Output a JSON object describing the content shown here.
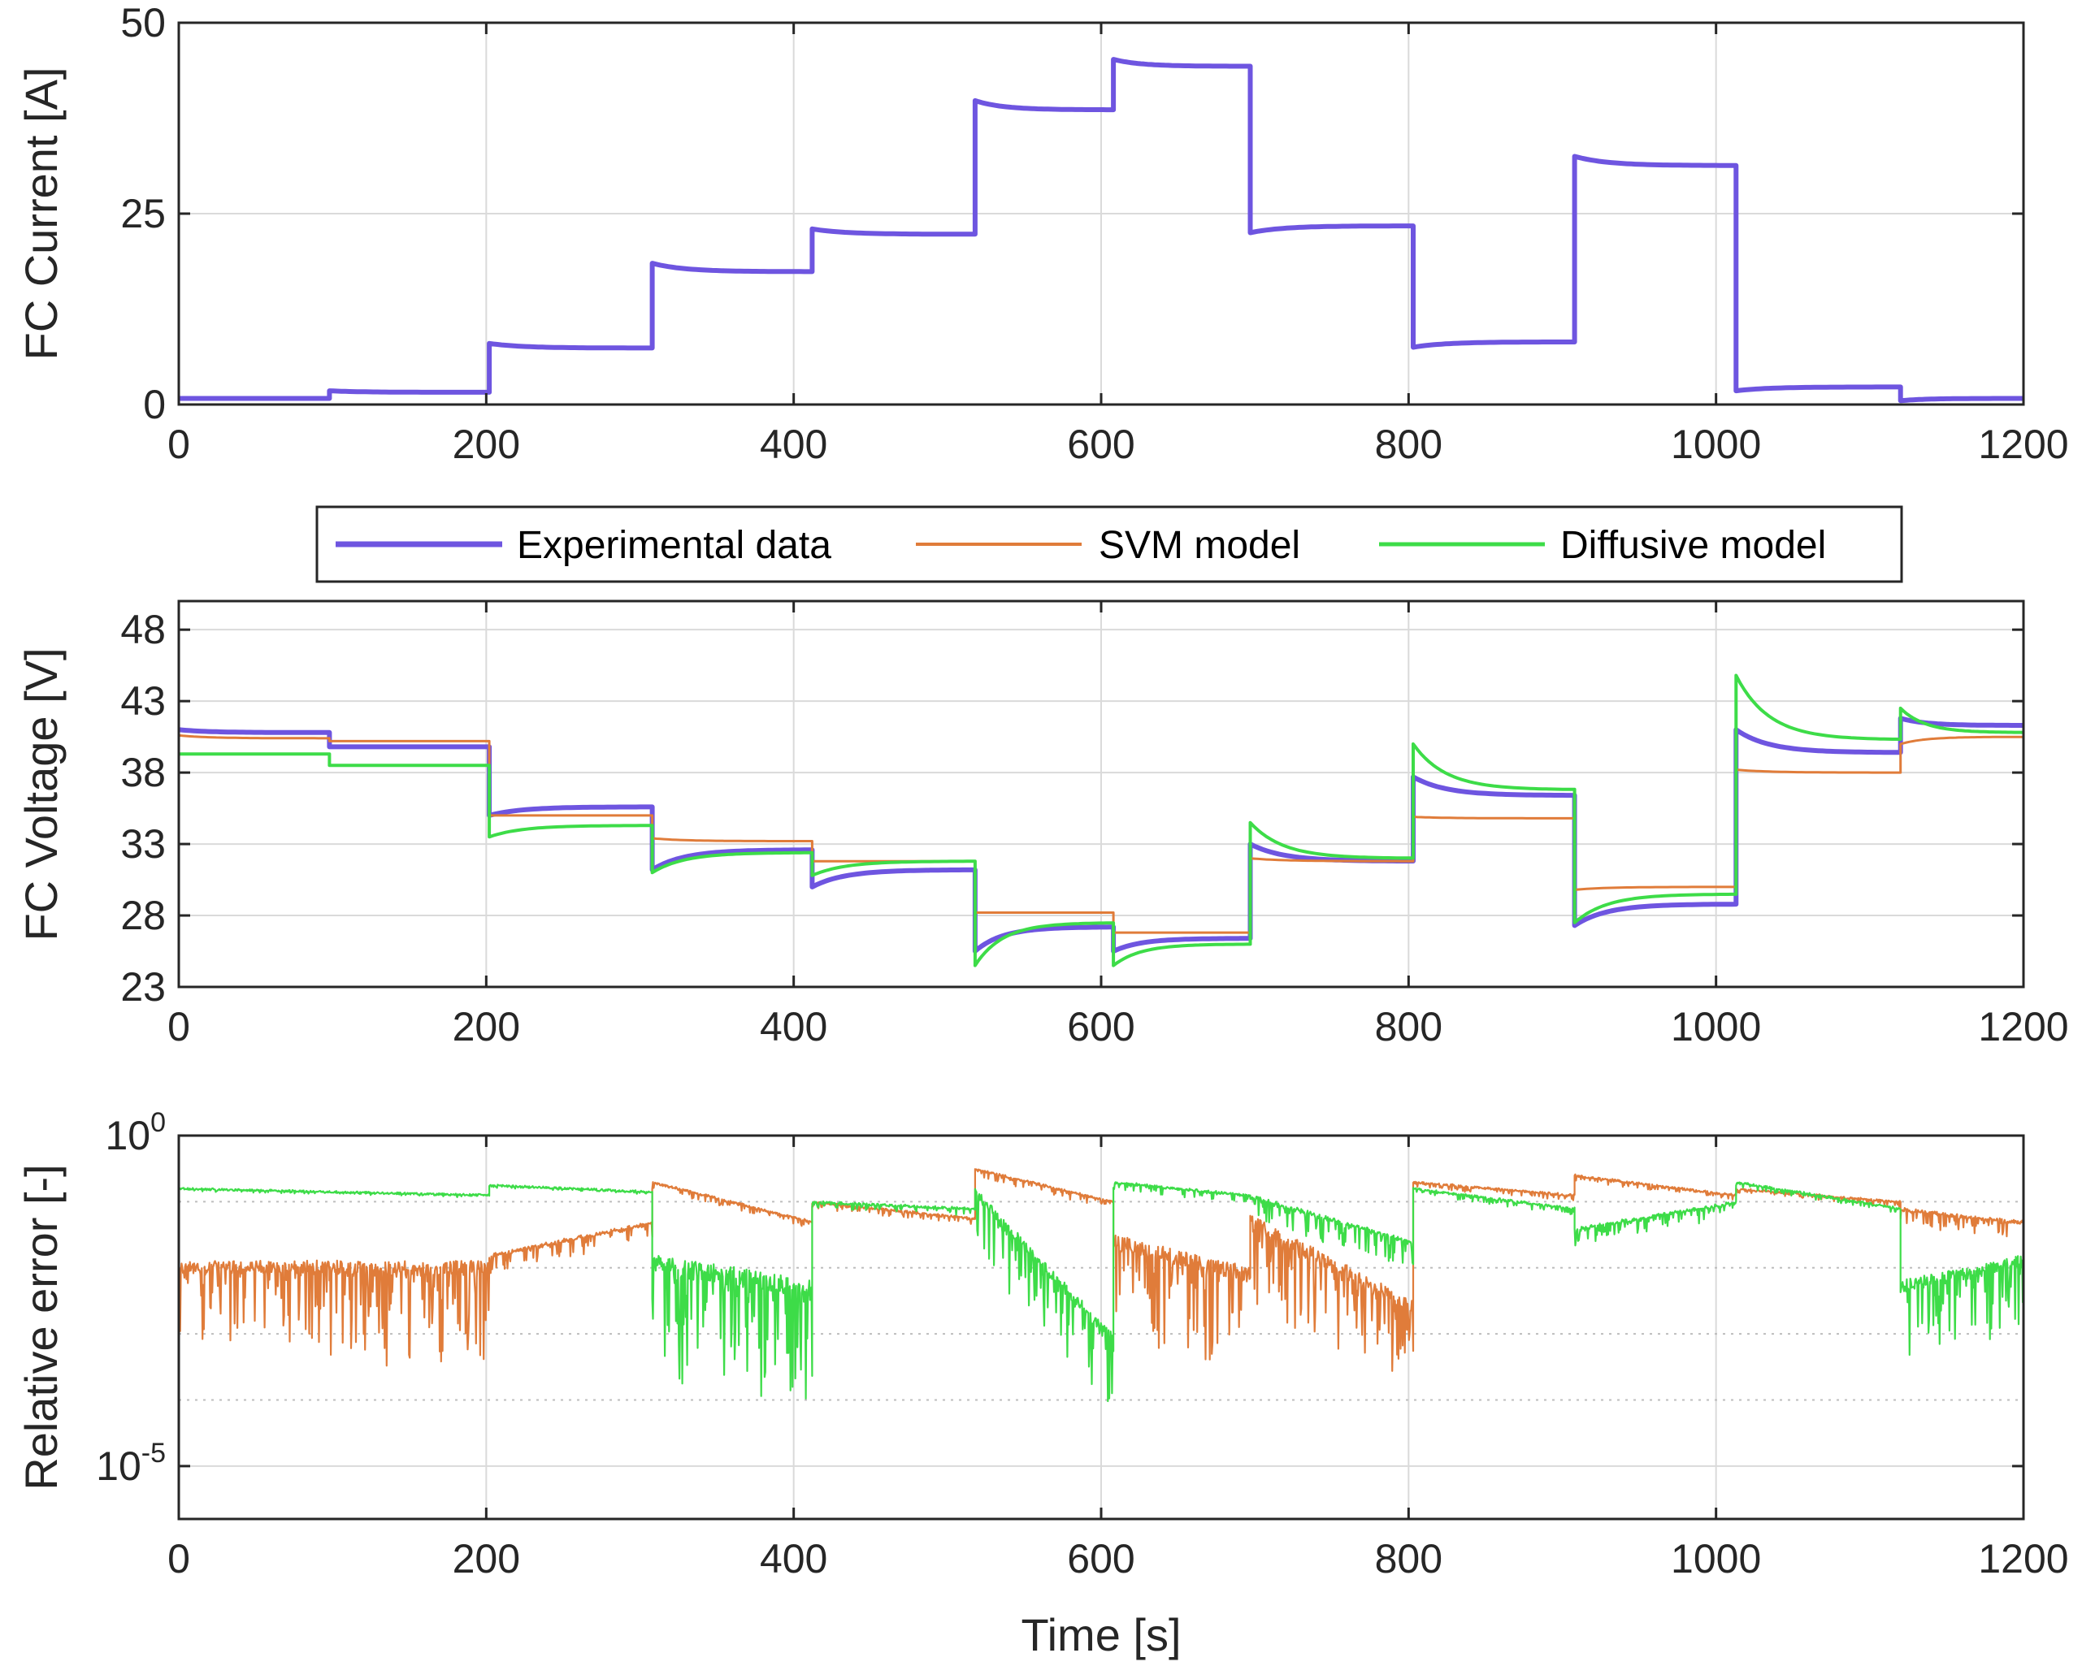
{
  "colors": {
    "experimental": "#6E55E0",
    "svm": "#E07C3A",
    "diffusive": "#3DDC48",
    "grid": "#DADADA",
    "axis": "#262626"
  },
  "legend": {
    "items": [
      {
        "key": "experimental",
        "label": "Experimental data"
      },
      {
        "key": "svm",
        "label": "SVM model"
      },
      {
        "key": "diffusive",
        "label": "Diffusive model"
      }
    ],
    "position": "between top and middle panels, centered"
  },
  "chart_data": [
    {
      "id": "current",
      "type": "line",
      "ylabel": "FC Current [A]",
      "xlabel": "",
      "xlim": [
        0,
        1200
      ],
      "ylim": [
        0,
        50
      ],
      "xticks": [
        "0",
        "200",
        "400",
        "600",
        "800",
        "1000",
        "1200"
      ],
      "yticks": [
        "0",
        "25",
        "50"
      ],
      "ytick_values": [
        0,
        25,
        50
      ],
      "grid": true,
      "series": [
        {
          "name": "Experimental data",
          "key": "experimental",
          "steps": [
            {
              "t0": 0,
              "t1": 98,
              "start": 0.8,
              "end": 0.8
            },
            {
              "t0": 98,
              "t1": 202,
              "start": 1.8,
              "end": 1.6
            },
            {
              "t0": 202,
              "t1": 308,
              "start": 8.0,
              "end": 7.4
            },
            {
              "t0": 308,
              "t1": 412,
              "start": 18.5,
              "end": 17.4
            },
            {
              "t0": 412,
              "t1": 518,
              "start": 23.0,
              "end": 22.3
            },
            {
              "t0": 518,
              "t1": 608,
              "start": 39.8,
              "end": 38.6
            },
            {
              "t0": 608,
              "t1": 697,
              "start": 45.2,
              "end": 44.3
            },
            {
              "t0": 697,
              "t1": 803,
              "start": 22.5,
              "end": 23.4
            },
            {
              "t0": 803,
              "t1": 908,
              "start": 7.5,
              "end": 8.2
            },
            {
              "t0": 908,
              "t1": 1013,
              "start": 32.5,
              "end": 31.3
            },
            {
              "t0": 1013,
              "t1": 1120,
              "start": 1.8,
              "end": 2.3
            },
            {
              "t0": 1120,
              "t1": 1200,
              "start": 0.5,
              "end": 0.8
            }
          ]
        }
      ]
    },
    {
      "id": "voltage",
      "type": "line",
      "ylabel": "FC Voltage [V]",
      "xlabel": "",
      "xlim": [
        0,
        1200
      ],
      "ylim": [
        23,
        50
      ],
      "xticks": [
        "0",
        "200",
        "400",
        "600",
        "800",
        "1000",
        "1200"
      ],
      "yticks": [
        "23",
        "28",
        "33",
        "38",
        "43",
        "48"
      ],
      "ytick_values": [
        23,
        28,
        33,
        38,
        43,
        48
      ],
      "grid": true,
      "series": [
        {
          "name": "Experimental data",
          "key": "experimental",
          "steps": [
            {
              "t0": 0,
              "t1": 98,
              "start": 41.0,
              "end": 40.8
            },
            {
              "t0": 98,
              "t1": 202,
              "start": 39.8,
              "end": 39.8
            },
            {
              "t0": 202,
              "t1": 308,
              "start": 35.0,
              "end": 35.6
            },
            {
              "t0": 308,
              "t1": 412,
              "start": 31.2,
              "end": 32.6
            },
            {
              "t0": 412,
              "t1": 518,
              "start": 30.0,
              "end": 31.2
            },
            {
              "t0": 518,
              "t1": 608,
              "start": 25.5,
              "end": 27.2
            },
            {
              "t0": 608,
              "t1": 697,
              "start": 25.5,
              "end": 26.4
            },
            {
              "t0": 697,
              "t1": 803,
              "start": 33.0,
              "end": 31.8
            },
            {
              "t0": 803,
              "t1": 908,
              "start": 37.7,
              "end": 36.4
            },
            {
              "t0": 908,
              "t1": 1013,
              "start": 27.3,
              "end": 28.8
            },
            {
              "t0": 1013,
              "t1": 1120,
              "start": 41.0,
              "end": 39.4
            },
            {
              "t0": 1120,
              "t1": 1200,
              "start": 41.8,
              "end": 41.3
            }
          ]
        },
        {
          "name": "SVM model",
          "key": "svm",
          "steps": [
            {
              "t0": 0,
              "t1": 98,
              "start": 40.6,
              "end": 40.4
            },
            {
              "t0": 98,
              "t1": 202,
              "start": 40.2,
              "end": 40.2
            },
            {
              "t0": 202,
              "t1": 308,
              "start": 35.0,
              "end": 35.0
            },
            {
              "t0": 308,
              "t1": 412,
              "start": 33.4,
              "end": 33.2
            },
            {
              "t0": 412,
              "t1": 518,
              "start": 31.8,
              "end": 31.8
            },
            {
              "t0": 518,
              "t1": 608,
              "start": 28.2,
              "end": 28.2
            },
            {
              "t0": 608,
              "t1": 697,
              "start": 26.8,
              "end": 26.8
            },
            {
              "t0": 697,
              "t1": 803,
              "start": 32.0,
              "end": 31.8
            },
            {
              "t0": 803,
              "t1": 908,
              "start": 34.9,
              "end": 34.8
            },
            {
              "t0": 908,
              "t1": 1013,
              "start": 29.8,
              "end": 30.0
            },
            {
              "t0": 1013,
              "t1": 1120,
              "start": 38.2,
              "end": 38.0
            },
            {
              "t0": 1120,
              "t1": 1200,
              "start": 40.0,
              "end": 40.5
            }
          ]
        },
        {
          "name": "Diffusive model",
          "key": "diffusive",
          "steps": [
            {
              "t0": 0,
              "t1": 98,
              "start": 39.3,
              "end": 39.3
            },
            {
              "t0": 98,
              "t1": 202,
              "start": 38.5,
              "end": 38.5
            },
            {
              "t0": 202,
              "t1": 308,
              "start": 33.5,
              "end": 34.3
            },
            {
              "t0": 308,
              "t1": 412,
              "start": 31.0,
              "end": 32.4
            },
            {
              "t0": 412,
              "t1": 518,
              "start": 30.8,
              "end": 31.8
            },
            {
              "t0": 518,
              "t1": 608,
              "start": 24.5,
              "end": 27.5
            },
            {
              "t0": 608,
              "t1": 697,
              "start": 24.5,
              "end": 26.0
            },
            {
              "t0": 697,
              "t1": 803,
              "start": 34.5,
              "end": 32.0
            },
            {
              "t0": 803,
              "t1": 908,
              "start": 40.0,
              "end": 36.8
            },
            {
              "t0": 908,
              "t1": 1013,
              "start": 27.5,
              "end": 29.5
            },
            {
              "t0": 1013,
              "t1": 1120,
              "start": 44.8,
              "end": 40.3
            },
            {
              "t0": 1120,
              "t1": 1200,
              "start": 42.5,
              "end": 40.8
            }
          ]
        }
      ]
    },
    {
      "id": "error",
      "type": "line",
      "yscale": "log",
      "ylabel": "Relative error [-]",
      "xlabel": "Time [s]",
      "xlim": [
        0,
        1200
      ],
      "ylim_log10": [
        -5.8,
        0
      ],
      "xticks": [
        "0",
        "200",
        "400",
        "600",
        "800",
        "1000",
        "1200"
      ],
      "yticks": [
        {
          "base": "10",
          "exp": "0"
        },
        {
          "base": "10",
          "exp": "-5"
        }
      ],
      "ytick_log10": [
        0,
        -5
      ],
      "minor_grid_log10": [
        -1,
        -2,
        -3,
        -4
      ],
      "grid": true,
      "series": [
        {
          "name": "SVM model",
          "key": "svm",
          "segments": [
            {
              "t0": 0,
              "t1": 98,
              "base": -1.9,
              "end": -1.9,
              "noise": 1.3
            },
            {
              "t0": 98,
              "t1": 202,
              "base": -1.9,
              "end": -1.9,
              "noise": 1.6
            },
            {
              "t0": 202,
              "t1": 308,
              "base": -1.8,
              "end": -1.3,
              "noise": 0.3
            },
            {
              "t0": 308,
              "t1": 412,
              "base": -0.7,
              "end": -1.3,
              "noise": 0.1
            },
            {
              "t0": 412,
              "t1": 518,
              "base": -1.0,
              "end": -1.25,
              "noise": 0.1
            },
            {
              "t0": 518,
              "t1": 608,
              "base": -0.5,
              "end": -1.0,
              "noise": 0.12
            },
            {
              "t0": 608,
              "t1": 697,
              "base": -1.5,
              "end": -2.0,
              "noise": 1.6
            },
            {
              "t0": 697,
              "t1": 803,
              "base": -1.2,
              "end": -2.5,
              "noise": 1.4
            },
            {
              "t0": 803,
              "t1": 908,
              "base": -0.7,
              "end": -0.9,
              "noise": 0.08
            },
            {
              "t0": 908,
              "t1": 1013,
              "base": -0.6,
              "end": -0.9,
              "noise": 0.08
            },
            {
              "t0": 1013,
              "t1": 1120,
              "base": -0.8,
              "end": -1.0,
              "noise": 0.08
            },
            {
              "t0": 1120,
              "t1": 1200,
              "base": -1.1,
              "end": -1.3,
              "noise": 0.3
            }
          ]
        },
        {
          "name": "Diffusive model",
          "key": "diffusive",
          "segments": [
            {
              "t0": 0,
              "t1": 98,
              "base": -0.8,
              "end": -0.85,
              "noise": 0.03
            },
            {
              "t0": 98,
              "t1": 202,
              "base": -0.85,
              "end": -0.9,
              "noise": 0.03
            },
            {
              "t0": 202,
              "t1": 308,
              "base": -0.75,
              "end": -0.85,
              "noise": 0.03
            },
            {
              "t0": 308,
              "t1": 412,
              "base": -1.8,
              "end": -2.2,
              "noise": 1.9
            },
            {
              "t0": 412,
              "t1": 518,
              "base": -1.0,
              "end": -1.1,
              "noise": 0.1
            },
            {
              "t0": 518,
              "t1": 608,
              "base": -0.8,
              "end": -3.0,
              "noise": 1.1
            },
            {
              "t0": 608,
              "t1": 697,
              "base": -0.7,
              "end": -0.9,
              "noise": 0.12
            },
            {
              "t0": 697,
              "t1": 803,
              "base": -0.9,
              "end": -1.6,
              "noise": 0.4
            },
            {
              "t0": 803,
              "t1": 908,
              "base": -0.8,
              "end": -1.1,
              "noise": 0.1
            },
            {
              "t0": 908,
              "t1": 1013,
              "base": -1.4,
              "end": -1.0,
              "noise": 0.25
            },
            {
              "t0": 1013,
              "t1": 1120,
              "base": -0.7,
              "end": -1.1,
              "noise": 0.08
            },
            {
              "t0": 1120,
              "t1": 1200,
              "base": -2.2,
              "end": -1.8,
              "noise": 1.2
            }
          ]
        }
      ]
    }
  ]
}
